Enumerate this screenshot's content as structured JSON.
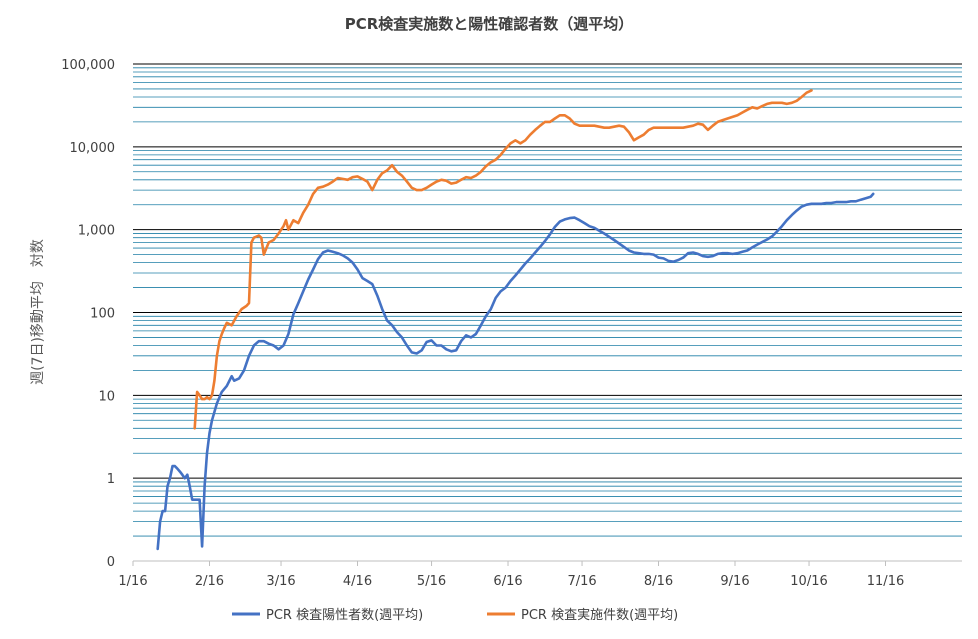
{
  "chart_data": {
    "type": "line",
    "title": "PCR検査実施数と陽性確認者数（週平均）",
    "ylabel": "週(7日)移動平均　対数",
    "xlabel": "",
    "y_scale": "log",
    "ylim": [
      0.1,
      100000
    ],
    "y_ticks": [
      0.1,
      1,
      10,
      100,
      1000,
      10000,
      100000
    ],
    "y_tick_labels": [
      "0",
      "1",
      "10",
      "100",
      "1,000",
      "10,000",
      "100,000"
    ],
    "x_ticks": [
      "1/16",
      "2/16",
      "3/16",
      "4/16",
      "5/16",
      "6/16",
      "7/16",
      "8/16",
      "9/16",
      "10/16",
      "11/16"
    ],
    "x_tick_day_offsets": [
      0,
      31,
      60,
      91,
      121,
      152,
      182,
      213,
      244,
      274,
      305
    ],
    "xlim_day_offsets": [
      0,
      336
    ],
    "grid": "horizontal, at 1-9 multiples of each decade",
    "legend_position": "bottom",
    "series": [
      {
        "name": "PCR 検査陽性者数(週平均)",
        "color": "#4472C4",
        "points": [
          [
            10,
            0.14
          ],
          [
            11,
            0.3
          ],
          [
            12,
            0.4
          ],
          [
            13,
            0.4
          ],
          [
            14,
            0.8
          ],
          [
            15,
            1.0
          ],
          [
            16,
            1.4
          ],
          [
            17,
            1.4
          ],
          [
            18,
            1.3
          ],
          [
            19,
            1.2
          ],
          [
            20,
            1.1
          ],
          [
            21,
            1.0
          ],
          [
            22,
            1.1
          ],
          [
            23,
            0.8
          ],
          [
            24,
            0.55
          ],
          [
            25,
            0.55
          ],
          [
            26,
            0.55
          ],
          [
            27,
            0.55
          ],
          [
            28,
            0.15
          ],
          [
            29,
            0.8
          ],
          [
            30,
            2.0
          ],
          [
            31,
            3.5
          ],
          [
            32,
            5
          ],
          [
            34,
            8
          ],
          [
            36,
            11
          ],
          [
            38,
            13
          ],
          [
            40,
            17
          ],
          [
            41,
            15
          ],
          [
            43,
            16
          ],
          [
            45,
            20
          ],
          [
            47,
            30
          ],
          [
            49,
            40
          ],
          [
            51,
            45
          ],
          [
            53,
            45
          ],
          [
            55,
            42
          ],
          [
            57,
            40
          ],
          [
            59,
            36
          ],
          [
            61,
            40
          ],
          [
            63,
            55
          ],
          [
            65,
            95
          ],
          [
            67,
            130
          ],
          [
            69,
            180
          ],
          [
            71,
            250
          ],
          [
            73,
            330
          ],
          [
            75,
            440
          ],
          [
            77,
            530
          ],
          [
            79,
            560
          ],
          [
            81,
            540
          ],
          [
            83,
            520
          ],
          [
            85,
            490
          ],
          [
            87,
            450
          ],
          [
            89,
            400
          ],
          [
            91,
            330
          ],
          [
            93,
            260
          ],
          [
            95,
            240
          ],
          [
            97,
            220
          ],
          [
            99,
            160
          ],
          [
            101,
            110
          ],
          [
            103,
            80
          ],
          [
            105,
            70
          ],
          [
            107,
            58
          ],
          [
            109,
            50
          ],
          [
            111,
            40
          ],
          [
            113,
            33
          ],
          [
            115,
            32
          ],
          [
            117,
            35
          ],
          [
            119,
            44
          ],
          [
            121,
            46
          ],
          [
            123,
            40
          ],
          [
            125,
            40
          ],
          [
            127,
            36
          ],
          [
            129,
            34
          ],
          [
            131,
            35
          ],
          [
            133,
            45
          ],
          [
            135,
            53
          ],
          [
            137,
            50
          ],
          [
            139,
            55
          ],
          [
            141,
            70
          ],
          [
            143,
            90
          ],
          [
            145,
            110
          ],
          [
            147,
            150
          ],
          [
            149,
            180
          ],
          [
            151,
            200
          ],
          [
            153,
            240
          ],
          [
            155,
            280
          ],
          [
            157,
            330
          ],
          [
            159,
            390
          ],
          [
            161,
            450
          ],
          [
            163,
            530
          ],
          [
            165,
            620
          ],
          [
            167,
            730
          ],
          [
            169,
            880
          ],
          [
            171,
            1080
          ],
          [
            173,
            1250
          ],
          [
            175,
            1330
          ],
          [
            177,
            1380
          ],
          [
            179,
            1400
          ],
          [
            181,
            1300
          ],
          [
            183,
            1200
          ],
          [
            185,
            1100
          ],
          [
            187,
            1050
          ],
          [
            189,
            970
          ],
          [
            191,
            900
          ],
          [
            193,
            820
          ],
          [
            195,
            750
          ],
          [
            197,
            680
          ],
          [
            199,
            620
          ],
          [
            201,
            560
          ],
          [
            203,
            530
          ],
          [
            205,
            520
          ],
          [
            207,
            510
          ],
          [
            209,
            510
          ],
          [
            211,
            500
          ],
          [
            213,
            460
          ],
          [
            215,
            450
          ],
          [
            217,
            420
          ],
          [
            219,
            410
          ],
          [
            221,
            430
          ],
          [
            223,
            460
          ],
          [
            225,
            520
          ],
          [
            227,
            530
          ],
          [
            229,
            510
          ],
          [
            231,
            480
          ],
          [
            233,
            470
          ],
          [
            235,
            480
          ],
          [
            237,
            510
          ],
          [
            239,
            520
          ],
          [
            241,
            520
          ],
          [
            243,
            510
          ],
          [
            245,
            520
          ],
          [
            247,
            540
          ],
          [
            249,
            560
          ],
          [
            251,
            610
          ],
          [
            253,
            660
          ],
          [
            255,
            710
          ],
          [
            257,
            760
          ],
          [
            259,
            830
          ],
          [
            261,
            950
          ],
          [
            263,
            1100
          ],
          [
            265,
            1300
          ],
          [
            267,
            1500
          ],
          [
            269,
            1700
          ],
          [
            271,
            1900
          ],
          [
            273,
            2000
          ],
          [
            275,
            2050
          ],
          [
            277,
            2050
          ],
          [
            279,
            2050
          ],
          [
            281,
            2100
          ],
          [
            283,
            2100
          ],
          [
            285,
            2150
          ],
          [
            287,
            2150
          ],
          [
            289,
            2150
          ],
          [
            291,
            2200
          ],
          [
            293,
            2200
          ],
          [
            295,
            2300
          ],
          [
            297,
            2400
          ],
          [
            299,
            2500
          ],
          [
            300,
            2700
          ]
        ]
      },
      {
        "name": "PCR 検査実施件数(週平均)",
        "color": "#ED7D31",
        "points": [
          [
            25,
            4
          ],
          [
            26,
            11
          ],
          [
            27,
            10
          ],
          [
            28,
            9
          ],
          [
            29,
            9
          ],
          [
            30,
            9.5
          ],
          [
            31,
            9
          ],
          [
            32,
            10
          ],
          [
            33,
            15
          ],
          [
            34,
            30
          ],
          [
            35,
            45
          ],
          [
            36,
            55
          ],
          [
            37,
            65
          ],
          [
            38,
            75
          ],
          [
            40,
            70
          ],
          [
            42,
            90
          ],
          [
            44,
            110
          ],
          [
            46,
            120
          ],
          [
            47,
            130
          ],
          [
            48,
            700
          ],
          [
            49,
            800
          ],
          [
            51,
            850
          ],
          [
            52,
            800
          ],
          [
            53,
            500
          ],
          [
            55,
            700
          ],
          [
            57,
            750
          ],
          [
            59,
            900
          ],
          [
            61,
            1100
          ],
          [
            62,
            1300
          ],
          [
            63,
            1000
          ],
          [
            65,
            1300
          ],
          [
            67,
            1200
          ],
          [
            69,
            1600
          ],
          [
            71,
            2000
          ],
          [
            73,
            2700
          ],
          [
            75,
            3200
          ],
          [
            77,
            3300
          ],
          [
            79,
            3500
          ],
          [
            81,
            3800
          ],
          [
            83,
            4200
          ],
          [
            85,
            4100
          ],
          [
            87,
            4000
          ],
          [
            89,
            4300
          ],
          [
            91,
            4400
          ],
          [
            93,
            4100
          ],
          [
            95,
            3800
          ],
          [
            97,
            3000
          ],
          [
            99,
            4000
          ],
          [
            101,
            4800
          ],
          [
            103,
            5200
          ],
          [
            105,
            6000
          ],
          [
            107,
            5000
          ],
          [
            109,
            4500
          ],
          [
            111,
            3800
          ],
          [
            113,
            3200
          ],
          [
            115,
            3000
          ],
          [
            117,
            3000
          ],
          [
            119,
            3200
          ],
          [
            121,
            3500
          ],
          [
            123,
            3800
          ],
          [
            125,
            4000
          ],
          [
            127,
            3900
          ],
          [
            129,
            3600
          ],
          [
            131,
            3700
          ],
          [
            133,
            4000
          ],
          [
            135,
            4300
          ],
          [
            137,
            4200
          ],
          [
            139,
            4500
          ],
          [
            141,
            5000
          ],
          [
            143,
            5800
          ],
          [
            145,
            6500
          ],
          [
            147,
            7000
          ],
          [
            149,
            8000
          ],
          [
            151,
            9500
          ],
          [
            153,
            11000
          ],
          [
            155,
            12000
          ],
          [
            157,
            11000
          ],
          [
            159,
            12000
          ],
          [
            161,
            14000
          ],
          [
            163,
            16000
          ],
          [
            165,
            18000
          ],
          [
            167,
            20000
          ],
          [
            169,
            20000
          ],
          [
            171,
            22000
          ],
          [
            173,
            24000
          ],
          [
            175,
            24000
          ],
          [
            177,
            22000
          ],
          [
            179,
            19000
          ],
          [
            181,
            18000
          ],
          [
            183,
            18000
          ],
          [
            185,
            18000
          ],
          [
            187,
            18000
          ],
          [
            189,
            17500
          ],
          [
            191,
            17000
          ],
          [
            193,
            17000
          ],
          [
            195,
            17500
          ],
          [
            197,
            18000
          ],
          [
            199,
            17500
          ],
          [
            201,
            15000
          ],
          [
            203,
            12000
          ],
          [
            205,
            13000
          ],
          [
            207,
            14000
          ],
          [
            209,
            16000
          ],
          [
            211,
            17000
          ],
          [
            213,
            17000
          ],
          [
            215,
            17000
          ],
          [
            217,
            17000
          ],
          [
            219,
            17000
          ],
          [
            221,
            17000
          ],
          [
            223,
            17000
          ],
          [
            225,
            17500
          ],
          [
            227,
            18000
          ],
          [
            229,
            19000
          ],
          [
            231,
            18500
          ],
          [
            233,
            16000
          ],
          [
            235,
            18000
          ],
          [
            237,
            20000
          ],
          [
            239,
            21000
          ],
          [
            241,
            22000
          ],
          [
            243,
            23000
          ],
          [
            245,
            24000
          ],
          [
            247,
            26000
          ],
          [
            249,
            28000
          ],
          [
            251,
            30000
          ],
          [
            253,
            29000
          ],
          [
            255,
            31000
          ],
          [
            257,
            33000
          ],
          [
            259,
            34000
          ],
          [
            261,
            34000
          ],
          [
            263,
            34000
          ],
          [
            265,
            33000
          ],
          [
            267,
            34000
          ],
          [
            269,
            36000
          ],
          [
            271,
            40000
          ],
          [
            273,
            45000
          ],
          [
            275,
            48000
          ]
        ]
      }
    ]
  }
}
